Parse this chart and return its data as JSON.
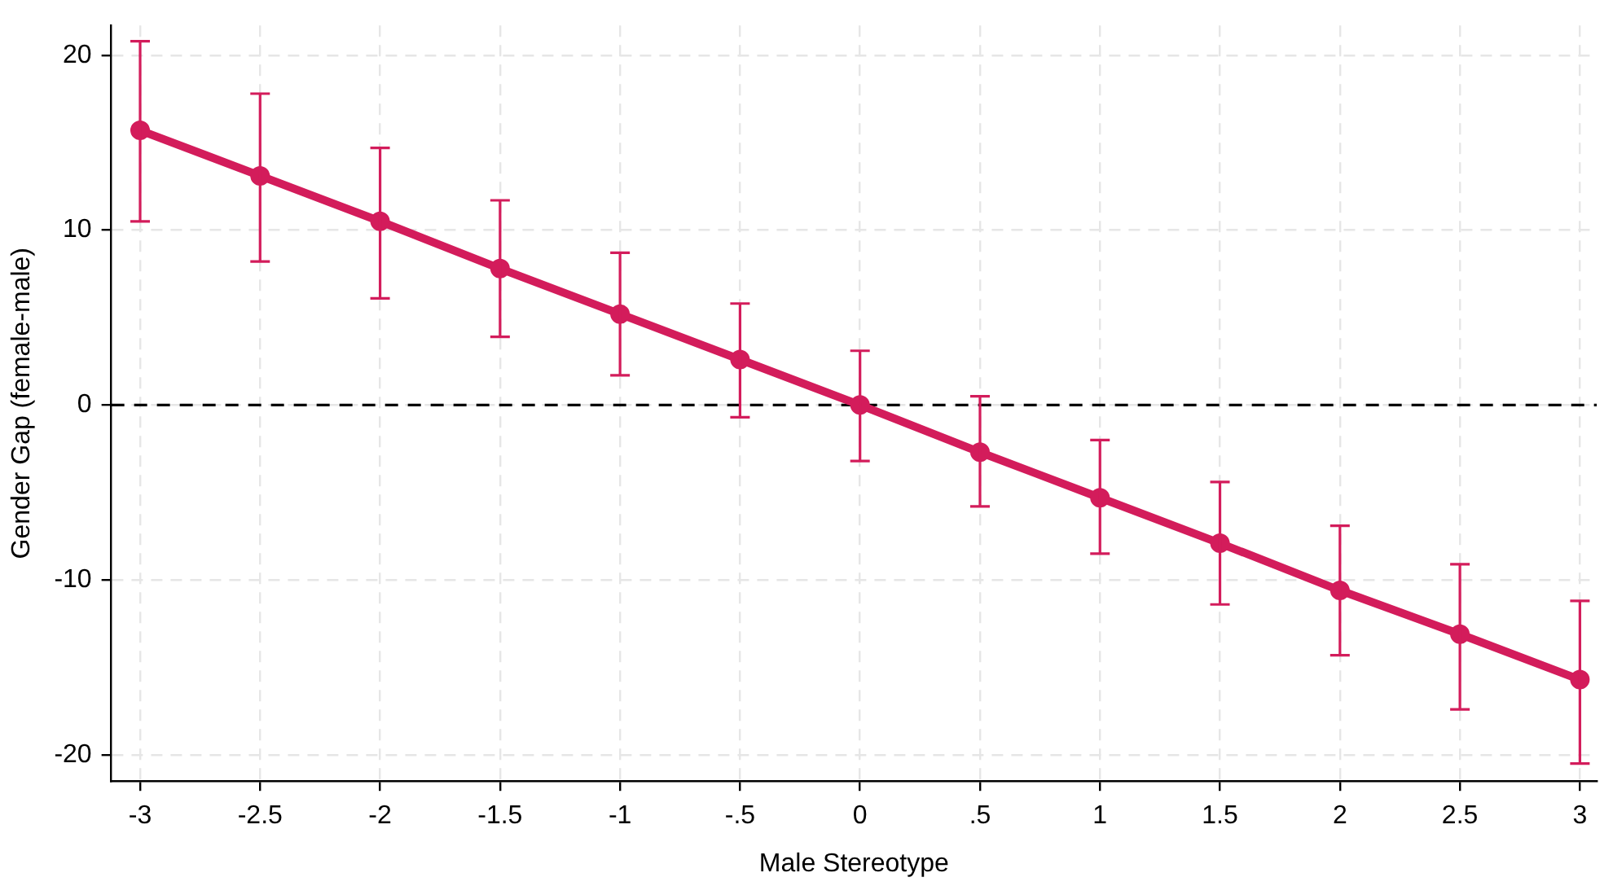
{
  "chart_data": {
    "type": "line",
    "xlabel": "Male Stereotype",
    "ylabel": "Gender Gap (female-male)",
    "x": [
      -3,
      -2.5,
      -2,
      -1.5,
      -1,
      -0.5,
      0,
      0.5,
      1,
      1.5,
      2,
      2.5,
      3
    ],
    "series": [
      {
        "color": "#d31c5b",
        "values": [
          15.7,
          13.1,
          10.5,
          7.8,
          5.2,
          2.6,
          0,
          -2.7,
          -5.3,
          -7.9,
          -10.6,
          -13.1,
          -15.7
        ],
        "errors": [
          [
            10.5,
            20.8
          ],
          [
            8.2,
            17.8
          ],
          [
            6.1,
            14.7
          ],
          [
            3.9,
            11.7
          ],
          [
            1.7,
            8.7
          ],
          [
            -0.7,
            5.8
          ],
          [
            -3.2,
            3.1
          ],
          [
            -5.8,
            0.5
          ],
          [
            -8.5,
            -2.0
          ],
          [
            -11.4,
            -4.4
          ],
          [
            -14.3,
            -6.9
          ],
          [
            -17.4,
            -9.1
          ],
          [
            -20.5,
            -11.2
          ]
        ]
      }
    ],
    "xlim": [
      -3.12,
      3.07
    ],
    "xticks": [
      -3,
      -2.5,
      -2,
      -1.5,
      -1,
      {
        "value": -0.5,
        "label": "-.5"
      },
      0,
      {
        "value": 0.5,
        "label": ".5"
      },
      1,
      1.5,
      2,
      2.5,
      3
    ],
    "ylim": [
      -21.5,
      21.7
    ],
    "yticks": [
      -20,
      -10,
      0,
      10,
      20
    ],
    "ref_lines": [
      {
        "axis": "y",
        "value": 0,
        "color": "#000000",
        "line_style": "dashed"
      }
    ],
    "grid": true,
    "legend": false,
    "marker": "circle",
    "line_style": "solid"
  }
}
